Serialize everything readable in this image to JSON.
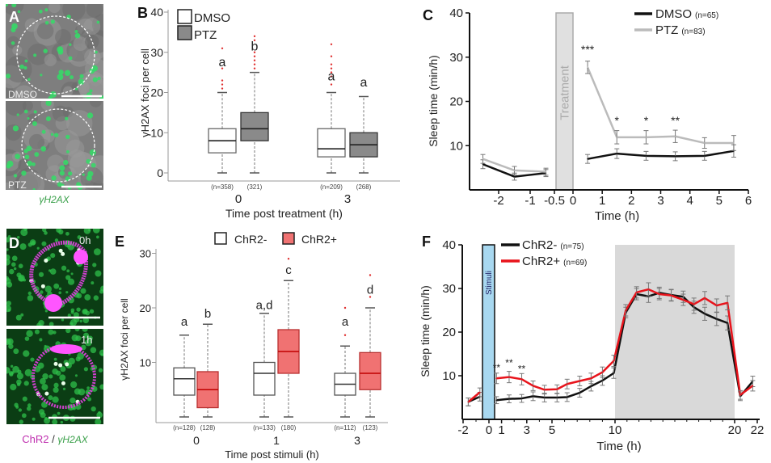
{
  "figure": {
    "panel_labels": {
      "A": "A",
      "B": "B",
      "C": "C",
      "D": "D",
      "E": "E",
      "F": "F"
    },
    "panel_A": {
      "top_label": "DMSO",
      "bottom_label": "PTZ",
      "caption": "γH2AX",
      "colors": {
        "foci": "#33dd66",
        "background": "#8a8a8a"
      }
    },
    "panel_D": {
      "top_label": "0h",
      "bottom_label": "1h",
      "caption_part1": "ChR2",
      "caption_sep": " / ",
      "caption_part2": "γH2AX",
      "colors": {
        "ChR2": "#e040e0",
        "γH2AX": "#2fbf4a"
      }
    }
  },
  "chart_data": [
    {
      "panel": "B",
      "type": "box",
      "ylabel": "γH2AX foci per cell",
      "xlabel": "Time post treatment (h)",
      "ylim": [
        0,
        40
      ],
      "yticks": [
        0,
        10,
        20,
        30,
        40
      ],
      "legend_placement": "top-left",
      "legend": [
        {
          "name": "DMSO",
          "color": "#ffffff"
        },
        {
          "name": "PTZ",
          "color": "#8a8a8a"
        }
      ],
      "groups": [
        {
          "label": "0",
          "boxes": [
            {
              "series": "DMSO",
              "n": "(n=358)",
              "min": 0,
              "q1": 5,
              "median": 8,
              "q3": 11,
              "max": 20,
              "outliers": [
                21,
                22,
                23,
                26,
                31
              ],
              "letter": "a",
              "letter_y": 27.5
            },
            {
              "series": "PTZ",
              "n": "(321)",
              "min": 0,
              "q1": 8,
              "median": 11,
              "q3": 15,
              "max": 25,
              "outliers": [
                26,
                27,
                28,
                29,
                30,
                33,
                34
              ],
              "letter": "b",
              "letter_y": 31.5
            }
          ]
        },
        {
          "label": "3",
          "boxes": [
            {
              "series": "DMSO",
              "n": "(n=209)",
              "min": 0,
              "q1": 4,
              "median": 6,
              "q3": 11,
              "max": 20,
              "outliers": [
                22,
                24,
                25,
                26,
                27,
                29,
                32
              ],
              "letter": "a",
              "letter_y": 24
            },
            {
              "series": "PTZ",
              "n": "(268)",
              "min": 0,
              "q1": 4,
              "median": 7,
              "q3": 10,
              "max": 19,
              "outliers": [],
              "letter": "a",
              "letter_y": 22.5
            }
          ]
        }
      ]
    },
    {
      "panel": "C",
      "type": "line",
      "ylabel": "Sleep time (min/h)",
      "xlabel": "Time (h)",
      "ylim": [
        0,
        40
      ],
      "yticks": [
        10,
        20,
        30,
        40
      ],
      "xticks": [
        -2,
        -1,
        -0.5,
        0,
        1,
        2,
        3,
        4,
        5,
        6
      ],
      "legend_placement": "top-right",
      "shaded": {
        "label": "Treatment",
        "from": -0.5,
        "to": 0,
        "color": "#e0e0e0"
      },
      "series": [
        {
          "name": "DMSO",
          "n": "(n=65)",
          "color": "#111111",
          "x": [
            -2.5,
            -1.5,
            -0.5,
            0.5,
            1.5,
            2.5,
            3.5,
            4.5,
            5.5
          ],
          "y": [
            5.8,
            3.0,
            3.8,
            7.0,
            8.2,
            7.7,
            7.6,
            7.7,
            8.8
          ],
          "err": [
            1.0,
            0.8,
            0.8,
            1.0,
            1.1,
            1.0,
            1.0,
            1.0,
            1.4
          ]
        },
        {
          "name": "PTZ",
          "n": "(n=83)",
          "color": "#bbbbbb",
          "x": [
            -2.5,
            -1.5,
            -0.5,
            0.5,
            1.5,
            2.5,
            3.5,
            4.5,
            5.5
          ],
          "y": [
            7.0,
            4.4,
            4.1,
            27.7,
            11.9,
            11.9,
            12.1,
            10.6,
            10.6
          ],
          "err": [
            1.0,
            0.9,
            0.8,
            1.4,
            1.5,
            1.5,
            1.4,
            1.2,
            1.7
          ]
        }
      ],
      "annotations": [
        {
          "x": 0.5,
          "y": 32,
          "text": "***"
        },
        {
          "x": 1.5,
          "y": 15.9,
          "text": "*"
        },
        {
          "x": 2.5,
          "y": 15.9,
          "text": "*"
        },
        {
          "x": 3.5,
          "y": 15.9,
          "text": "**"
        }
      ]
    },
    {
      "panel": "E",
      "type": "box",
      "ylabel": "γH2AX foci per cell",
      "xlabel": "Time post stimuli (h)",
      "ylim": [
        0,
        30
      ],
      "yticks": [
        10,
        20,
        30
      ],
      "legend_placement": "top",
      "legend": [
        {
          "name": "ChR2-",
          "color": "#ffffff"
        },
        {
          "name": "ChR2+",
          "color": "#f07272"
        }
      ],
      "groups": [
        {
          "label": "0",
          "boxes": [
            {
              "series": "ChR2-",
              "n": "(n=128)",
              "min": 0,
              "q1": 4,
              "median": 7,
              "q3": 9,
              "max": 15,
              "outliers": [],
              "letter": "a",
              "letter_y": 17.5
            },
            {
              "series": "ChR2+",
              "n": "(128)",
              "min": 0,
              "q1": 1.7,
              "median": 5,
              "q3": 8.3,
              "max": 17,
              "outliers": [],
              "letter": "b",
              "letter_y": 19
            }
          ]
        },
        {
          "label": "1",
          "boxes": [
            {
              "series": "ChR2-",
              "n": "(n=133)",
              "min": 0,
              "q1": 4,
              "median": 8,
              "q3": 10,
              "max": 19,
              "outliers": [],
              "letter": "a,d",
              "letter_y": 20.5
            },
            {
              "series": "ChR2+",
              "n": "(180)",
              "min": 0,
              "q1": 8,
              "median": 12,
              "q3": 16,
              "max": 25,
              "outliers": [
                29
              ],
              "letter": "c",
              "letter_y": 27
            }
          ]
        },
        {
          "label": "3",
          "boxes": [
            {
              "series": "ChR2-",
              "n": "(n=112)",
              "min": 0,
              "q1": 4,
              "median": 6,
              "q3": 8,
              "max": 13,
              "outliers": [
                15,
                20
              ],
              "letter": "a",
              "letter_y": 17.5
            },
            {
              "series": "ChR2+",
              "n": "(123)",
              "min": 0,
              "q1": 5,
              "median": 8,
              "q3": 11.8,
              "max": 20,
              "outliers": [
                22,
                26
              ],
              "letter": "d",
              "letter_y": 23.3
            }
          ]
        }
      ]
    },
    {
      "panel": "F",
      "type": "line",
      "ylabel": "Sleep time (min/h)",
      "xlabel": "Time (h)",
      "ylim": [
        0,
        40
      ],
      "yticks": [
        10,
        20,
        30,
        40
      ],
      "xticks": [
        -2,
        0,
        1,
        3,
        5,
        10,
        20,
        22
      ],
      "xlim": [
        -2,
        22
      ],
      "legend_placement": "top-left",
      "shaded": {
        "label": "Stimuli",
        "from": -0.5,
        "to": 0.5,
        "color": "#a8d8f0"
      },
      "shaded_gray": {
        "from": 10,
        "to": 20,
        "color": "#d9d9d9"
      },
      "series": [
        {
          "name": "ChR2-",
          "n": "(n=75)",
          "color": "#111111",
          "x": [
            -1.6,
            -0.7,
            0.6,
            1.6,
            2.6,
            3.5,
            4.4,
            5.4,
            6.2,
            7.2,
            8.1,
            9.0,
            9.9,
            10.9,
            11.8,
            12.8,
            13.7,
            14.7,
            15.7,
            16.6,
            17.5,
            18.5,
            19.4,
            20.5,
            21.6
          ],
          "y": [
            4.0,
            5.2,
            4.4,
            4.7,
            4.8,
            5.3,
            5.0,
            5.0,
            5.1,
            6.1,
            7.6,
            8.9,
            10.6,
            24.5,
            28.7,
            28.2,
            29.0,
            28.5,
            28.1,
            25.7,
            24.2,
            23.0,
            22.1,
            5.3,
            8.7
          ],
          "err": [
            0.9,
            1.0,
            0.8,
            0.9,
            0.9,
            1.0,
            1.0,
            1.0,
            1.0,
            1.0,
            1.1,
            1.1,
            1.2,
            1.2,
            1.3,
            1.4,
            1.3,
            1.3,
            1.3,
            1.4,
            1.5,
            1.5,
            1.6,
            1.0,
            1.2
          ]
        },
        {
          "name": "ChR2+",
          "n": "(n=69)",
          "color": "#e8131b",
          "x": [
            -1.6,
            -0.7,
            0.6,
            1.6,
            2.6,
            3.5,
            4.4,
            5.4,
            6.2,
            7.2,
            8.1,
            9.0,
            9.9,
            10.9,
            11.8,
            12.8,
            13.7,
            14.7,
            15.7,
            16.6,
            17.5,
            18.5,
            19.4,
            20.5,
            21.6
          ],
          "y": [
            4.0,
            6.2,
            9.4,
            9.7,
            9.2,
            7.7,
            6.8,
            6.9,
            8.1,
            8.8,
            9.4,
            10.8,
            13.4,
            25.0,
            29.1,
            29.8,
            28.7,
            28.4,
            27.4,
            26.4,
            27.8,
            26.1,
            26.7,
            5.6,
            7.7
          ],
          "err": [
            0.9,
            1.0,
            1.2,
            1.3,
            1.3,
            1.1,
            1.0,
            1.0,
            1.1,
            1.1,
            1.2,
            1.2,
            1.3,
            1.3,
            1.3,
            1.5,
            1.3,
            1.3,
            1.3,
            1.4,
            1.5,
            1.5,
            1.6,
            1.0,
            1.2
          ]
        }
      ],
      "annotations": [
        {
          "x": 0.6,
          "y": 12.2,
          "text": "**"
        },
        {
          "x": 1.6,
          "y": 13.3,
          "text": "**"
        },
        {
          "x": 2.6,
          "y": 11.9,
          "text": "**"
        }
      ]
    }
  ]
}
